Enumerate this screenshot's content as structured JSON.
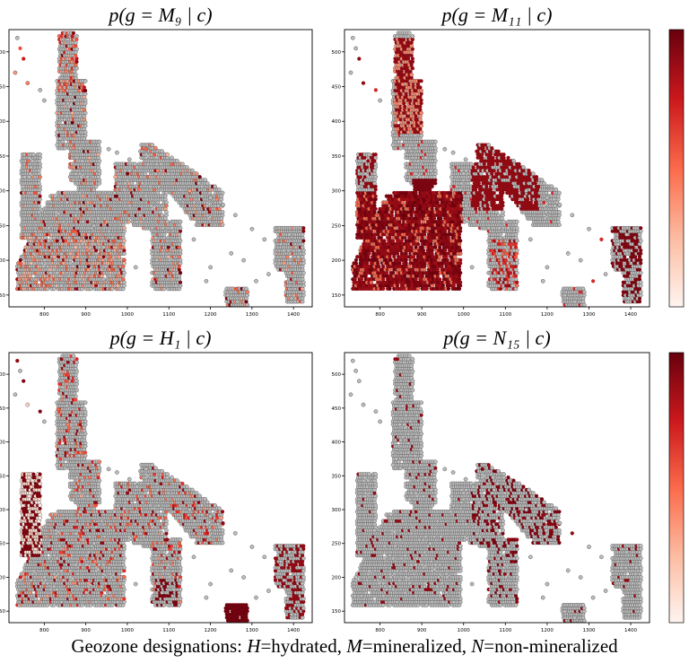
{
  "chart_data": [
    {
      "type": "scatter",
      "title": "p(g = M₉ | c)",
      "xticks": [
        800,
        900,
        1000,
        1100,
        1200,
        1300,
        1400
      ],
      "yticks": [
        150,
        200,
        250,
        300,
        350,
        400,
        450,
        500
      ],
      "xlim": [
        715,
        1445
      ],
      "ylim": [
        133,
        532
      ],
      "profile": "M9"
    },
    {
      "type": "scatter",
      "title": "p(g = M₁₁ | c)",
      "xticks": [
        800,
        900,
        1000,
        1100,
        1200,
        1300,
        1400
      ],
      "yticks": [
        150,
        200,
        250,
        300,
        350,
        400,
        450,
        500
      ],
      "xlim": [
        715,
        1445
      ],
      "ylim": [
        133,
        532
      ],
      "profile": "M11"
    },
    {
      "type": "scatter",
      "title": "p(g = H₁ | c)",
      "xticks": [
        800,
        900,
        1000,
        1100,
        1200,
        1300,
        1400
      ],
      "yticks": [
        150,
        200,
        250,
        300,
        350,
        400,
        450,
        500
      ],
      "xlim": [
        715,
        1445
      ],
      "ylim": [
        133,
        532
      ],
      "profile": "H1"
    },
    {
      "type": "scatter",
      "title": "p(g = N₁₅ | c)",
      "xticks": [
        800,
        900,
        1000,
        1100,
        1200,
        1300,
        1400
      ],
      "yticks": [
        150,
        200,
        250,
        300,
        350,
        400,
        450,
        500
      ],
      "xlim": [
        715,
        1445
      ],
      "ylim": [
        133,
        532
      ],
      "profile": "N15"
    }
  ],
  "colorbar": {
    "colormap": "Reds",
    "range": [
      0,
      1
    ]
  },
  "caption": {
    "prefix": "Geozone designations: ",
    "h": "H",
    "h_txt": "=hydrated, ",
    "m": "M",
    "m_txt": "=mineralized, ",
    "n": "N",
    "n_txt": "=non-mineralized"
  },
  "colors": {
    "low": "#fff5f0",
    "high": "#67000d",
    "empty": "#bdbdbd",
    "edge": "#555555"
  }
}
